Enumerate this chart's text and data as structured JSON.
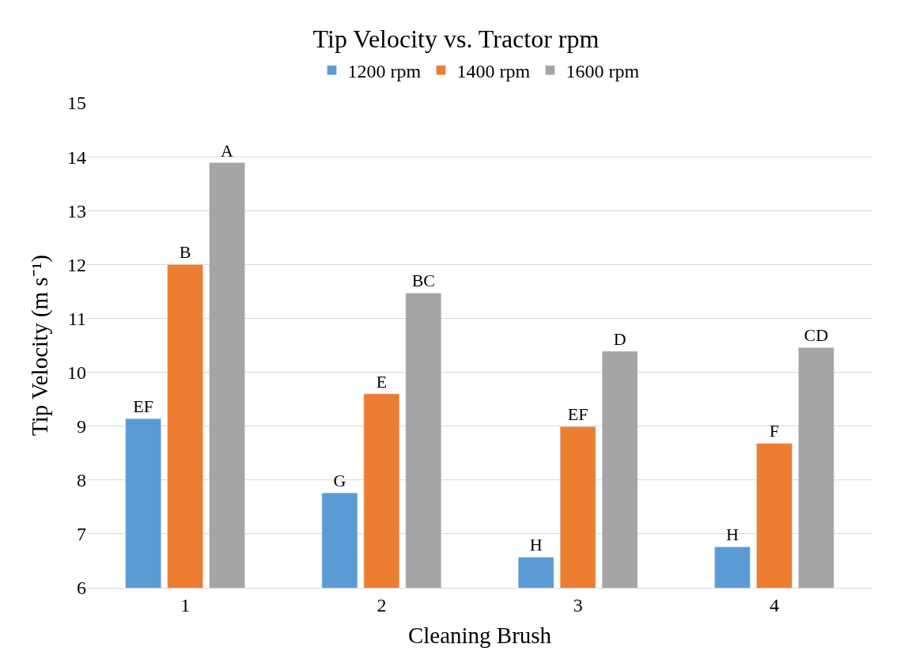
{
  "chart_data": {
    "type": "bar",
    "title": "Tip Velocity vs. Tractor rpm",
    "xlabel": "Cleaning Brush",
    "ylabel": "Tip Velocity (m s⁻¹)",
    "categories": [
      "1",
      "2",
      "3",
      "4"
    ],
    "series": [
      {
        "name": "1200 rpm",
        "color": "#5b9bd5",
        "values": [
          9.14,
          7.76,
          6.57,
          6.76
        ],
        "value_labels": [
          "EF",
          "G",
          "H",
          "H"
        ]
      },
      {
        "name": "1400 rpm",
        "color": "#ed7d31",
        "values": [
          12.0,
          9.6,
          8.99,
          8.68
        ],
        "value_labels": [
          "B",
          "E",
          "EF",
          "F"
        ]
      },
      {
        "name": "1600 rpm",
        "color": "#a5a5a5",
        "values": [
          13.89,
          11.47,
          10.39,
          10.46
        ],
        "value_labels": [
          "A",
          "BC",
          "D",
          "CD"
        ]
      }
    ],
    "ylim": [
      6,
      15
    ],
    "yticks": [
      6,
      7,
      8,
      9,
      10,
      11,
      12,
      13,
      14,
      15
    ],
    "grid": "y",
    "legend": "top"
  }
}
